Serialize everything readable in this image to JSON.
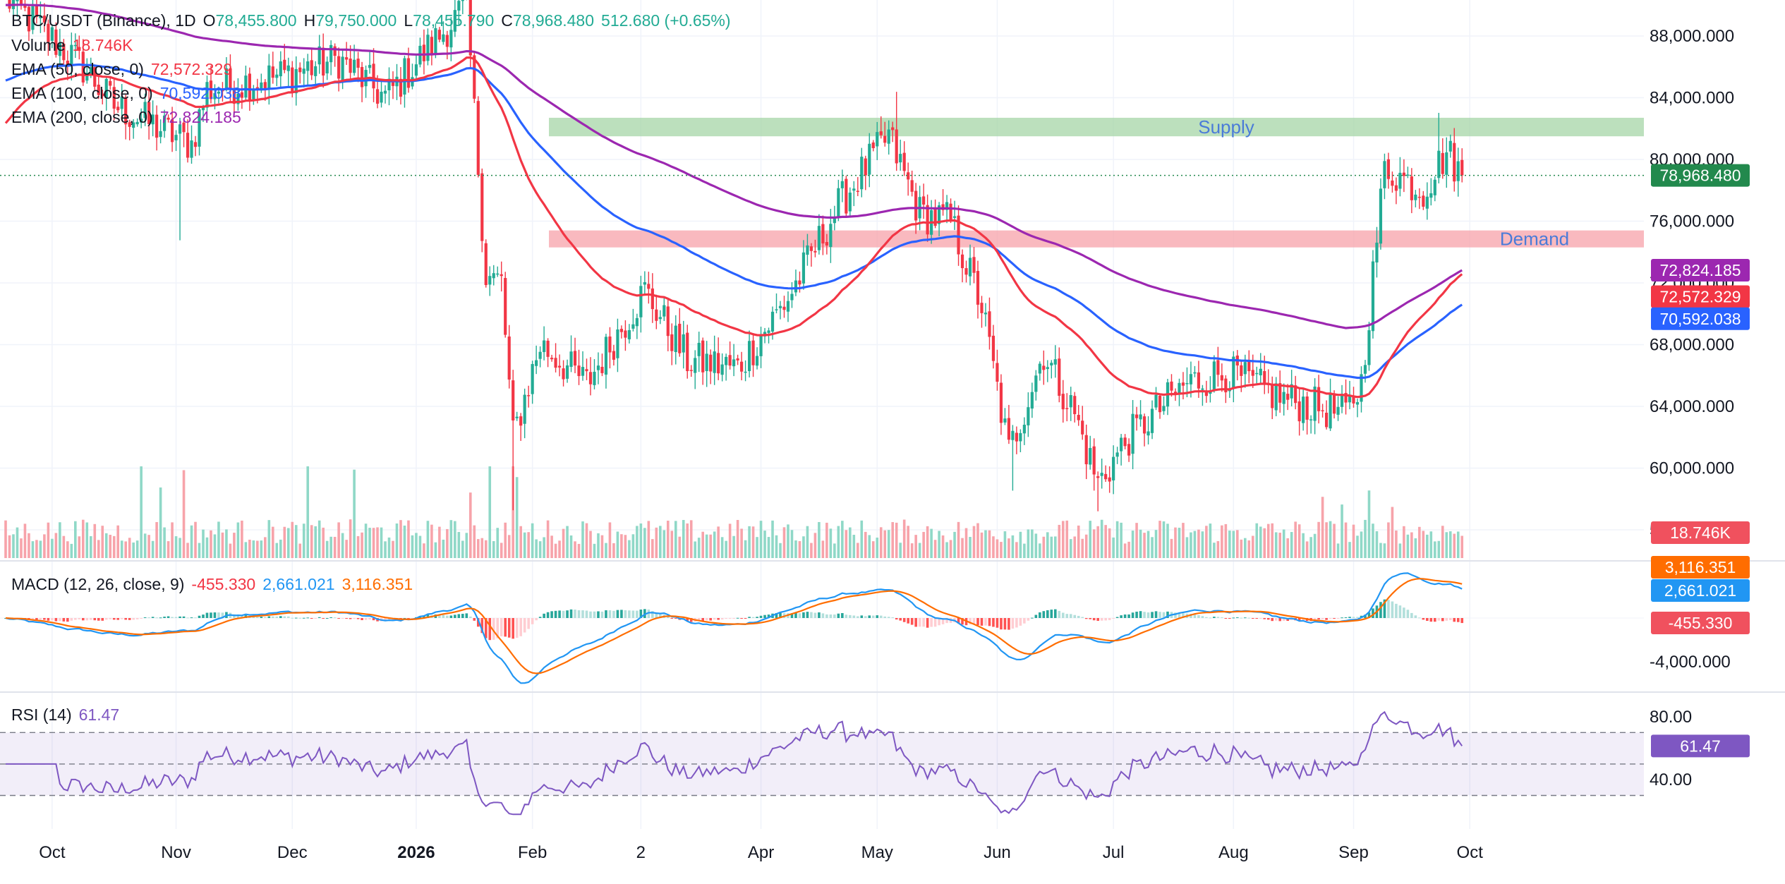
{
  "header": {
    "symbol": "BTC/USDT (Binance), 1D",
    "o_label": "O",
    "o_value": "78,455.800",
    "h_label": "H",
    "h_value": "79,750.000",
    "l_label": "L",
    "l_value": "78,455.790",
    "c_label": "C",
    "c_value": "78,968.480",
    "change": "512.680 (+0.65%)"
  },
  "legend": {
    "volume_label": "Volume",
    "volume_value": "18.746K",
    "ema50_label": "EMA (50, close, 0)",
    "ema50_value": "72,572.329",
    "ema100_label": "EMA (100, close, 0)",
    "ema100_value": "70,592.038",
    "ema200_label": "EMA (200, close, 0)",
    "ema200_value": "72,824.185",
    "macd_label": "MACD (12, 26, close, 9)",
    "macd_hist": "-455.330",
    "macd_line": "2,661.021",
    "macd_signal": "3,116.351",
    "rsi_label": "RSI (14)",
    "rsi_value": "61.47"
  },
  "zones": {
    "supply_label": "Supply",
    "demand_label": "Demand"
  },
  "colors": {
    "up": "#22ab94",
    "down": "#f23645",
    "ema50": "#f23645",
    "ema100": "#2962ff",
    "ema200": "#9c27b0",
    "macd": "#2196f3",
    "signal": "#ff6d00",
    "rsi": "#7e57c2",
    "supply": "#a5d6a7",
    "demand": "#f7a1aa",
    "last": "#22894d"
  },
  "chart_data": [
    {
      "type": "candlestick",
      "title": "BTC/USDT (Binance), 1D",
      "x_ticks": [
        "Oct",
        "Nov",
        "Dec",
        "2026",
        "Feb",
        "2",
        "Apr",
        "May",
        "Jun",
        "Jul",
        "Aug",
        "Sep",
        "Oct"
      ],
      "y_ticks": [
        "88,000.000",
        "84,000.000",
        "80,000.000",
        "76,000.000",
        "72,000.000",
        "68,000.000",
        "64,000.000",
        "60,000.000",
        "56,000.000"
      ],
      "ylim": [
        56000,
        89500
      ],
      "last_price": 78968.48,
      "last_price_label": "78,968.480",
      "zones": [
        {
          "name": "Supply",
          "from": 81500,
          "to": 82700
        },
        {
          "name": "Demand",
          "from": 74300,
          "to": 75400
        }
      ],
      "price_anchors": [
        [
          0,
          90500
        ],
        [
          20,
          86000
        ],
        [
          28,
          83500
        ],
        [
          48,
          81000
        ],
        [
          52,
          84500
        ],
        [
          72,
          85500
        ],
        [
          86,
          86500
        ],
        [
          98,
          84000
        ],
        [
          119,
          90000
        ],
        [
          124,
          72500
        ],
        [
          128,
          72000
        ],
        [
          131,
          62000
        ],
        [
          138,
          68000
        ],
        [
          150,
          65500
        ],
        [
          165,
          71500
        ],
        [
          176,
          67000
        ],
        [
          189,
          66500
        ],
        [
          202,
          71000
        ],
        [
          215,
          77000
        ],
        [
          222,
          79500
        ],
        [
          228,
          81500
        ],
        [
          236,
          76500
        ],
        [
          244,
          76000
        ],
        [
          252,
          70500
        ],
        [
          259,
          61000
        ],
        [
          268,
          67500
        ],
        [
          276,
          63500
        ],
        [
          282,
          59000
        ],
        [
          290,
          62000
        ],
        [
          305,
          65500
        ],
        [
          315,
          66200
        ],
        [
          330,
          64500
        ],
        [
          346,
          63500
        ],
        [
          350,
          65500
        ],
        [
          356,
          79500
        ],
        [
          366,
          78000
        ],
        [
          372,
          80500
        ],
        [
          376,
          78968
        ]
      ],
      "series": [
        {
          "name": "EMA (50, close, 0)",
          "last": 72572.329,
          "last_label": "72,572.329"
        },
        {
          "name": "EMA (100, close, 0)",
          "last": 70592.038,
          "last_label": "70,592.038"
        },
        {
          "name": "EMA (200, close, 0)",
          "last": 72824.185,
          "last_label": "72,824.185"
        }
      ]
    },
    {
      "type": "bar",
      "title": "Volume",
      "last": 18.746,
      "last_label": "18.746K"
    },
    {
      "type": "line",
      "title": "MACD (12, 26, close, 9)",
      "y_ticks": [
        "-4,000.000"
      ],
      "last_macd_label": "2,661.021",
      "last_signal_label": "3,116.351",
      "last_hist_label": "-455.330"
    },
    {
      "type": "line",
      "title": "RSI (14)",
      "y_ticks": [
        "80.00",
        "40.00"
      ],
      "levels": [
        70,
        50,
        30
      ],
      "ylim": [
        15,
        95
      ],
      "last": 61.47,
      "last_label": "61.47"
    }
  ]
}
